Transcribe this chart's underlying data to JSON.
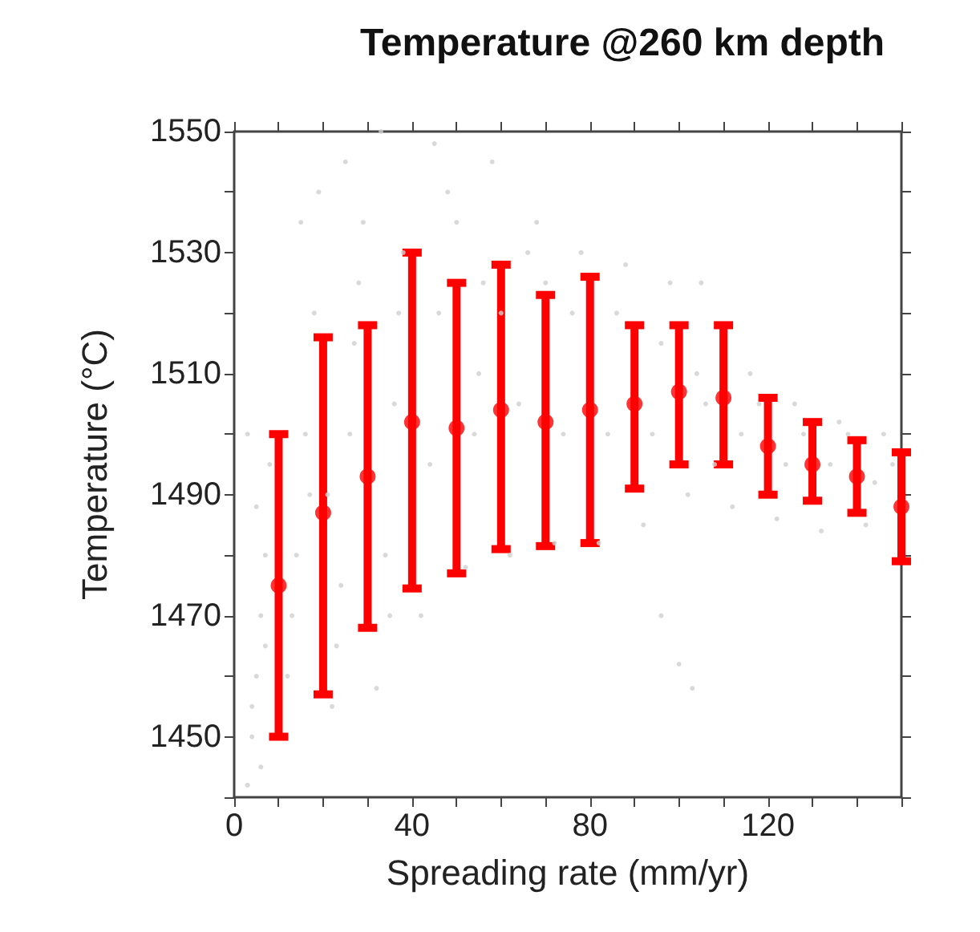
{
  "chart_data": {
    "type": "scatter",
    "title": "Temperature @260 km depth",
    "xlabel": "Spreading rate (mm/yr)",
    "ylabel": "Temperature (°C)",
    "xlim": [
      0,
      150
    ],
    "ylim": [
      1440,
      1550
    ],
    "xticks": [
      0,
      {
        "value": 10,
        "label": null
      },
      {
        "value": 20,
        "label": null
      },
      {
        "value": 30,
        "label": null
      },
      40,
      {
        "value": 50,
        "label": null
      },
      {
        "value": 60,
        "label": null
      },
      {
        "value": 70,
        "label": null
      },
      80,
      {
        "value": 90,
        "label": null
      },
      {
        "value": 100,
        "label": null
      },
      {
        "value": 110,
        "label": null
      },
      120,
      {
        "value": 130,
        "label": null
      },
      {
        "value": 140,
        "label": null
      },
      {
        "value": 150,
        "label": null
      }
    ],
    "yticks": [
      {
        "value": 1440,
        "label": null
      },
      1450,
      {
        "value": 1460,
        "label": null
      },
      1470,
      {
        "value": 1480,
        "label": null
      },
      1490,
      {
        "value": 1500,
        "label": null
      },
      1510,
      {
        "value": 1520,
        "label": null
      },
      1530,
      {
        "value": 1540,
        "label": null
      },
      1550
    ],
    "grid": false,
    "series": [
      {
        "color": "#d0d0d0",
        "x": [
          3,
          4,
          5,
          6,
          7,
          8,
          3,
          5,
          7,
          4,
          6,
          12,
          14,
          16,
          18,
          15,
          13,
          17,
          19,
          22,
          24,
          26,
          28,
          25,
          23,
          27,
          21,
          29,
          32,
          34,
          36,
          38,
          33,
          35,
          37,
          42,
          44,
          46,
          48,
          45,
          52,
          54,
          56,
          58,
          55,
          62,
          64,
          66,
          68,
          72,
          74,
          76,
          78,
          82,
          84,
          86,
          88,
          92,
          94,
          96,
          98,
          102,
          104,
          105,
          106,
          108,
          112,
          114,
          116,
          118,
          122,
          124,
          126,
          128,
          132,
          134,
          136,
          138,
          142,
          144,
          146,
          148,
          100,
          103,
          96,
          60,
          70,
          50
        ],
        "values": [
          1442,
          1450,
          1460,
          1470,
          1480,
          1495,
          1500,
          1488,
          1465,
          1455,
          1445,
          1460,
          1480,
          1500,
          1520,
          1535,
          1470,
          1490,
          1540,
          1455,
          1475,
          1500,
          1525,
          1545,
          1465,
          1515,
          1490,
          1535,
          1458,
          1480,
          1505,
          1530,
          1550,
          1470,
          1520,
          1470,
          1495,
          1520,
          1540,
          1548,
          1478,
          1500,
          1525,
          1545,
          1510,
          1480,
          1505,
          1530,
          1535,
          1482,
          1500,
          1520,
          1530,
          1482,
          1500,
          1520,
          1528,
          1485,
          1500,
          1515,
          1525,
          1490,
          1510,
          1525,
          1505,
          1495,
          1488,
          1500,
          1510,
          1505,
          1486,
          1495,
          1505,
          1500,
          1484,
          1495,
          1502,
          1500,
          1485,
          1492,
          1500,
          1495,
          1462,
          1458,
          1470,
          1520,
          1525,
          1535
        ]
      },
      {
        "color": "#ff0000",
        "x": [
          10,
          20,
          30,
          40,
          50,
          60,
          70,
          80,
          90,
          100,
          110,
          120,
          130,
          140,
          150
        ],
        "values": [
          1475,
          1487,
          1493,
          1502,
          1501,
          1504,
          1502,
          1504,
          1505,
          1507,
          1506,
          1498,
          1495,
          1493,
          1488
        ],
        "errors": [
          [
            1450,
            1500
          ],
          [
            1457,
            1516
          ],
          [
            1468,
            1518
          ],
          [
            1474.5,
            1530
          ],
          [
            1477,
            1525
          ],
          [
            1481,
            1528
          ],
          [
            1481.5,
            1523
          ],
          [
            1482,
            1526
          ],
          [
            1491,
            1518
          ],
          [
            1495,
            1518
          ],
          [
            1495,
            1518
          ],
          [
            1490,
            1506
          ],
          [
            1489,
            1502
          ],
          [
            1487,
            1499
          ],
          [
            1479,
            1497
          ]
        ]
      }
    ]
  }
}
